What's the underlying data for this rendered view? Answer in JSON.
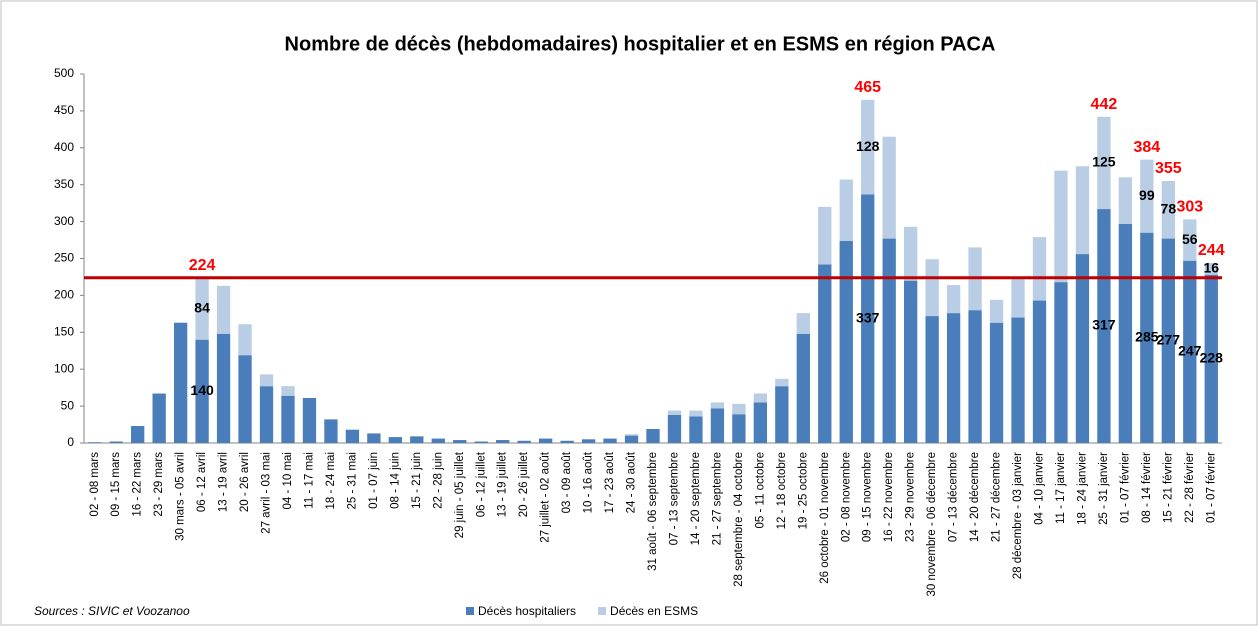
{
  "chart_data": {
    "type": "stacked-bar",
    "title": "Nombre de décès (hebdomadaires) hospitalier et en ESMS en région PACA",
    "source": "Sources : SIVIC et Voozanoo",
    "categories": [
      "02 - 08 mars",
      "09 - 15 mars",
      "16 - 22 mars",
      "23 - 29 mars",
      "30 mars - 05 avril",
      "06 - 12 avril",
      "13 - 19 avril",
      "20 - 26 avril",
      "27 avril - 03 mai",
      "04 - 10 mai",
      "11 - 17 mai",
      "18 - 24 mai",
      "25 - 31 mai",
      "01 - 07 juin",
      "08 - 14 juin",
      "15 - 21 juin",
      "22 - 28 juin",
      "29 juin - 05 juillet",
      "06 - 12 juillet",
      "13 - 19 juillet",
      "20 - 26 juillet",
      "27 juillet - 02 août",
      "03 - 09 août",
      "10 - 16 août",
      "17 - 23 août",
      "24 - 30 août",
      "31 août - 06 septembre",
      "07 - 13 septembre",
      "14 - 20 septembre",
      "21 - 27 septembre",
      "28 septembre - 04 octobre",
      "05 - 11 octobre",
      "12 - 18 octobre",
      "19 - 25 octobre",
      "26 octobre - 01 novembre",
      "02 - 08 novembre",
      "09 - 15 novembre",
      "16 - 22 novembre",
      "23 - 29 novembre",
      "30 novembre - 06 décembre",
      "07 - 13 décembre",
      "14 - 20 décembre",
      "21 - 27 décembre",
      "28 décembre - 03 janvier",
      "04 - 10 janvier",
      "11 - 17 janvier",
      "18 - 24 janvier",
      "25 - 31 janvier",
      "01 - 07 février",
      "08 - 14 février",
      "15 - 21 février",
      "22 - 28 février",
      "01 - 07 février"
    ],
    "series": [
      {
        "name": "Décès hospitaliers",
        "color": "#4a7ebb",
        "values": [
          1,
          2,
          23,
          67,
          163,
          140,
          148,
          119,
          77,
          64,
          61,
          32,
          18,
          13,
          8,
          9,
          6,
          4,
          2,
          4,
          3,
          6,
          3,
          5,
          6,
          10,
          19,
          38,
          36,
          47,
          39,
          55,
          77,
          148,
          242,
          274,
          337,
          277,
          220,
          172,
          176,
          180,
          163,
          170,
          193,
          218,
          256,
          317,
          297,
          285,
          277,
          247,
          228
        ],
        "labels": [
          null,
          null,
          null,
          null,
          null,
          140,
          null,
          null,
          null,
          null,
          null,
          null,
          null,
          null,
          null,
          null,
          null,
          null,
          null,
          null,
          null,
          null,
          null,
          null,
          null,
          null,
          null,
          null,
          null,
          null,
          null,
          null,
          null,
          null,
          null,
          null,
          337,
          null,
          null,
          null,
          null,
          null,
          null,
          null,
          null,
          null,
          null,
          317,
          null,
          285,
          277,
          247,
          228
        ]
      },
      {
        "name": "Décès en ESMS",
        "color": "#b9cde5",
        "values": [
          0,
          0,
          0,
          0,
          0,
          84,
          65,
          42,
          16,
          13,
          0,
          0,
          0,
          0,
          0,
          0,
          0,
          0,
          0,
          0,
          0,
          0,
          0,
          0,
          0,
          2,
          0,
          6,
          8,
          8,
          14,
          12,
          10,
          28,
          78,
          83,
          128,
          138,
          73,
          77,
          38,
          85,
          31,
          52,
          86,
          151,
          119,
          125,
          63,
          99,
          78,
          56,
          16
        ],
        "labels": [
          null,
          null,
          null,
          null,
          null,
          84,
          null,
          null,
          null,
          null,
          null,
          null,
          null,
          null,
          null,
          null,
          null,
          null,
          null,
          null,
          null,
          null,
          null,
          null,
          null,
          null,
          null,
          null,
          null,
          null,
          null,
          null,
          null,
          null,
          null,
          null,
          128,
          null,
          null,
          null,
          null,
          null,
          null,
          null,
          null,
          null,
          null,
          125,
          null,
          99,
          78,
          56,
          16
        ]
      }
    ],
    "total_labels": [
      null,
      null,
      null,
      null,
      null,
      224,
      null,
      null,
      null,
      null,
      null,
      null,
      null,
      null,
      null,
      null,
      null,
      null,
      null,
      null,
      null,
      null,
      null,
      null,
      null,
      null,
      null,
      null,
      null,
      null,
      null,
      null,
      null,
      null,
      null,
      null,
      465,
      null,
      null,
      null,
      null,
      null,
      null,
      null,
      null,
      null,
      null,
      442,
      null,
      384,
      355,
      303,
      244
    ],
    "total_label_color": "#ff0000",
    "reference_line": {
      "value": 224,
      "color": "#c00000"
    },
    "ylim": [
      0,
      500
    ],
    "yticks": [
      0,
      50,
      100,
      150,
      200,
      250,
      300,
      350,
      400,
      450,
      500
    ],
    "legend": "bottom"
  }
}
